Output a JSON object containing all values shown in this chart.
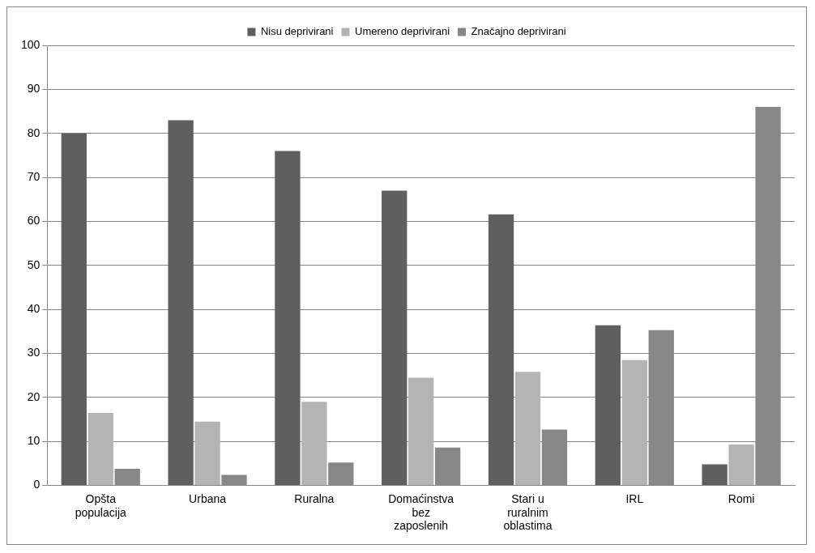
{
  "chart_data": {
    "type": "bar",
    "categories": [
      "Opšta populacija",
      "Urbana",
      "Ruralna",
      "Domaćinstva bez zaposlenih",
      "Stari u ruralnim oblastima",
      "IRL",
      "Romi"
    ],
    "series": [
      {
        "name": "Nisu deprivirani",
        "color": "#5f5f5f",
        "values": [
          80,
          83,
          76,
          67,
          61.6,
          36.4,
          4.8
        ]
      },
      {
        "name": "Umereno deprivirani",
        "color": "#b4b4b4",
        "values": [
          16.5,
          14.5,
          19,
          24.5,
          25.8,
          28.5,
          9.3
        ]
      },
      {
        "name": "Značajno deprivirani",
        "color": "#878787",
        "values": [
          3.8,
          2.4,
          5.2,
          8.6,
          12.7,
          35.3,
          86
        ]
      }
    ],
    "ylim": [
      0,
      100
    ],
    "yticks": [
      0,
      10,
      20,
      30,
      40,
      50,
      60,
      70,
      80,
      90,
      100
    ],
    "grid": "y",
    "legend": "top"
  }
}
